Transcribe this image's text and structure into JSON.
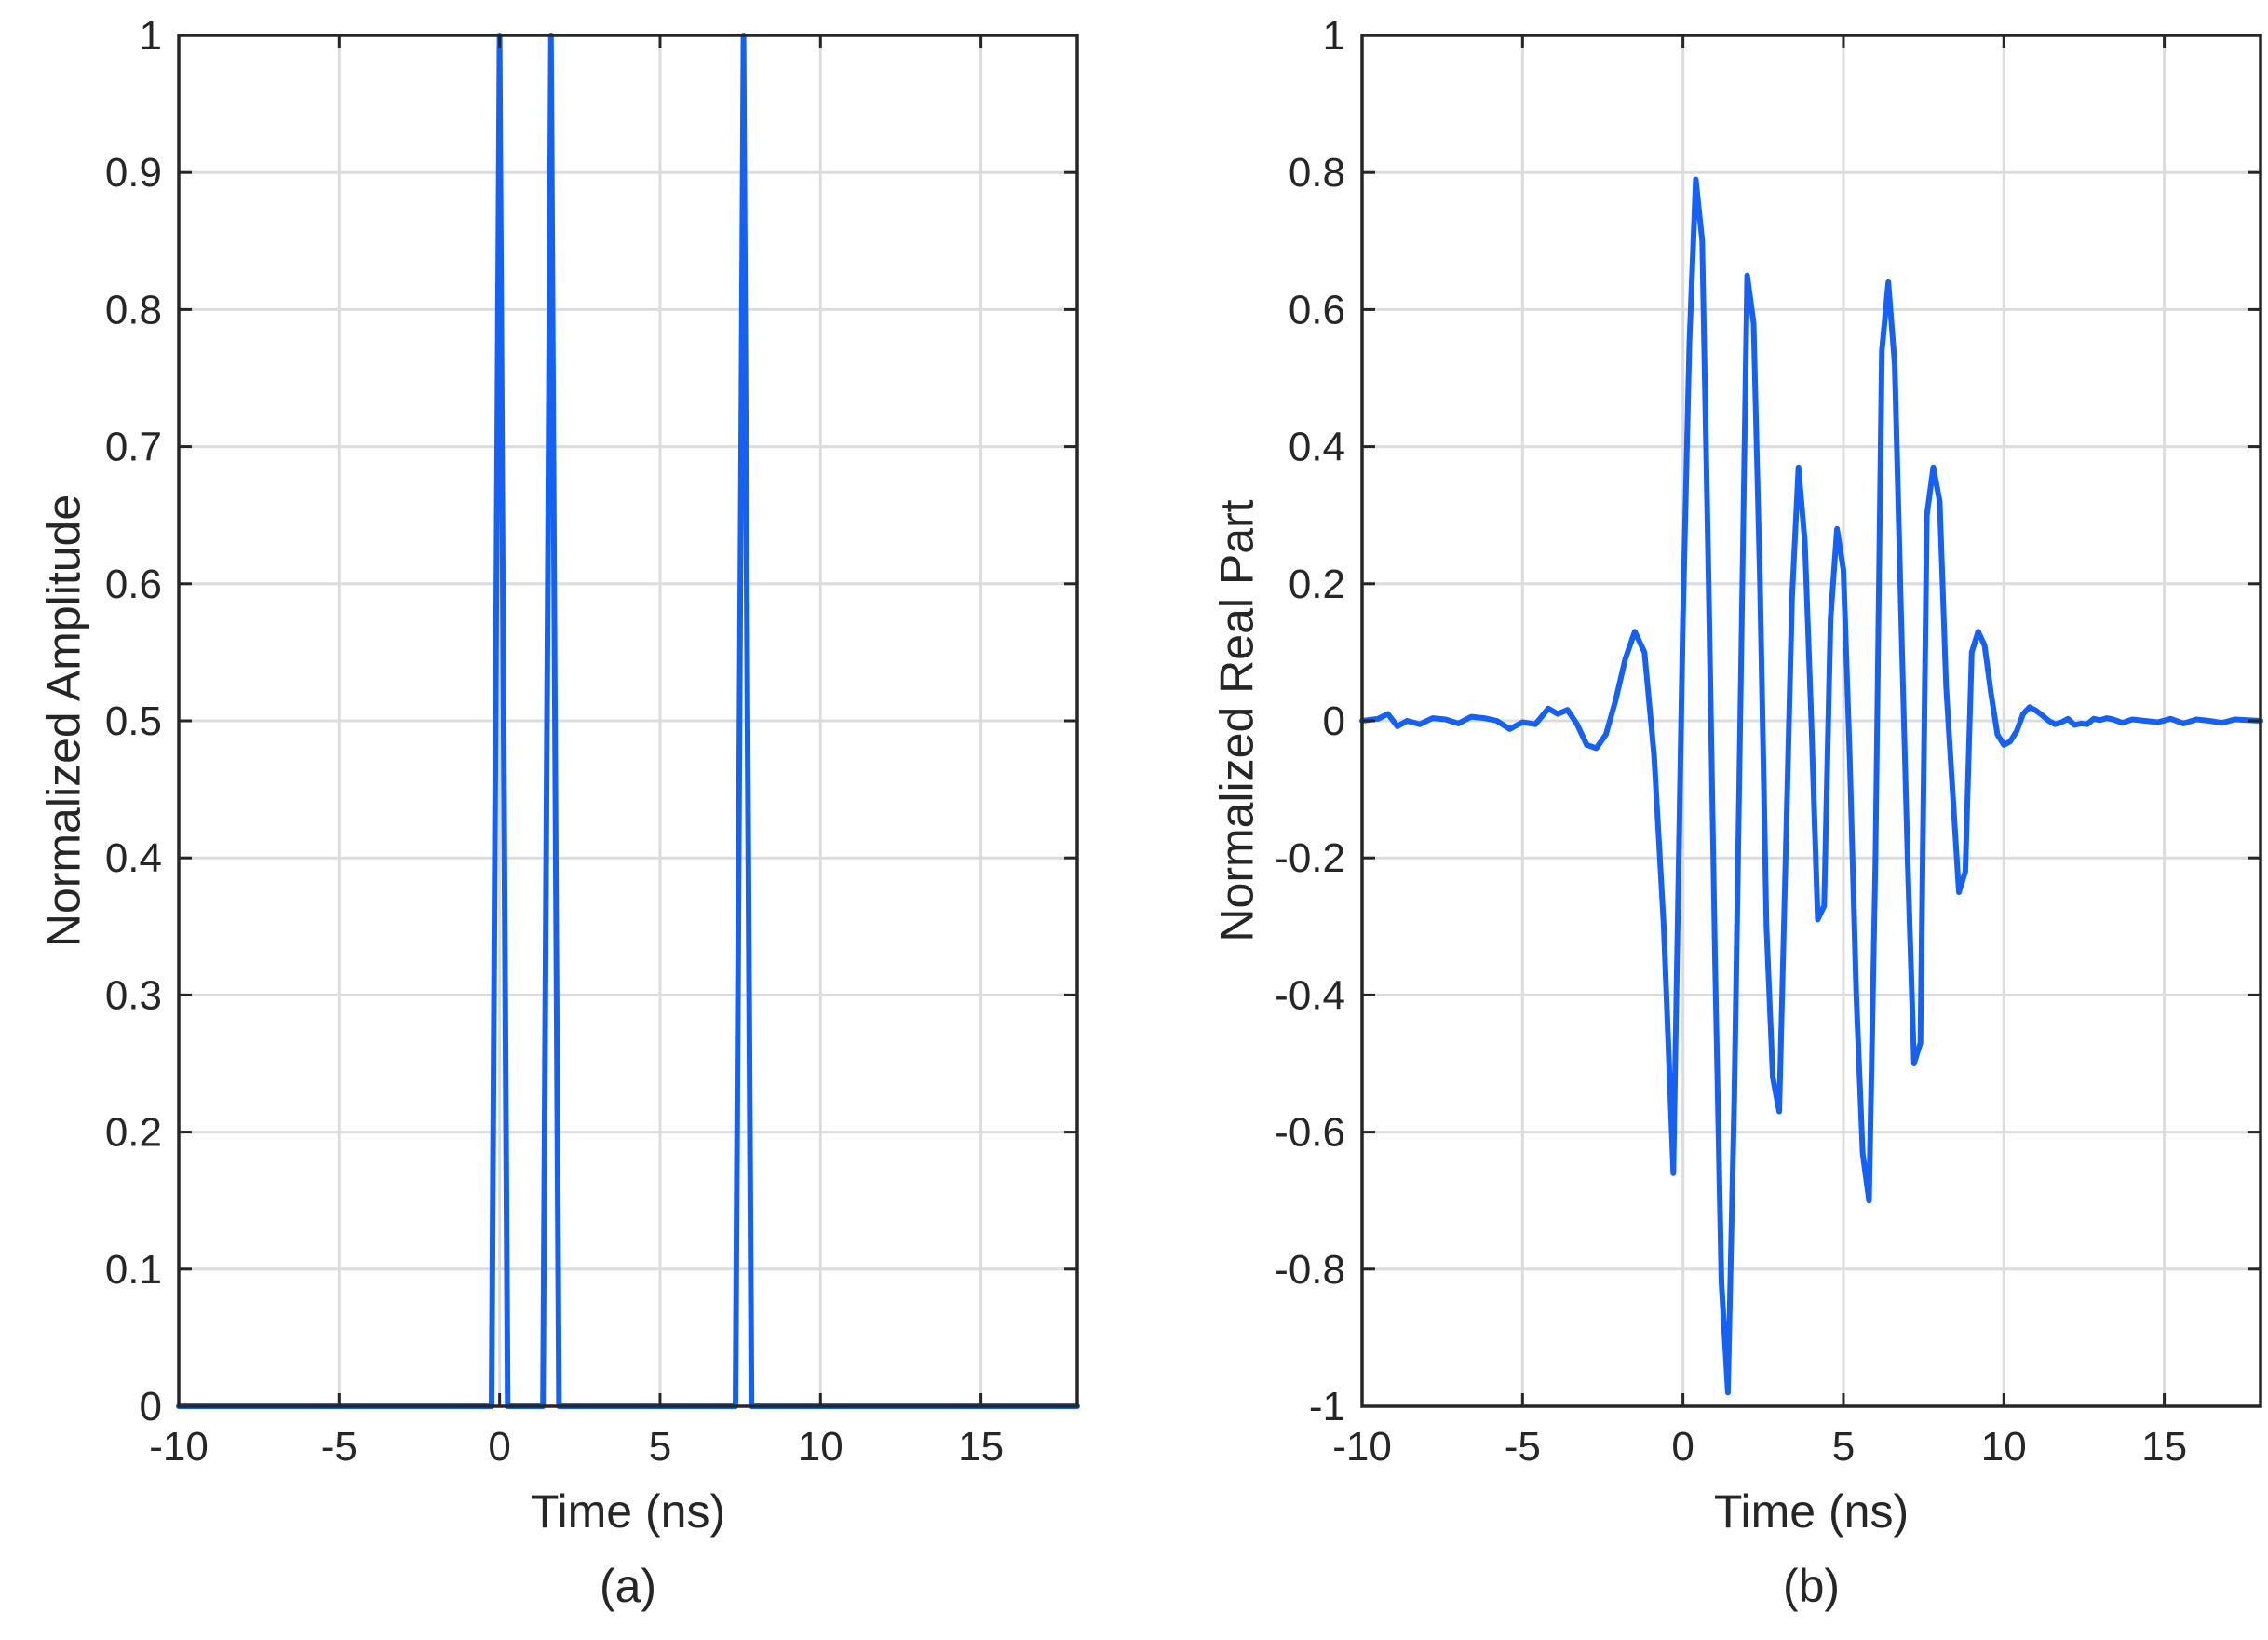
{
  "colors": {
    "series": "#1560f5",
    "axis": "#262626",
    "grid": "#dcdcdc"
  },
  "chart_data": [
    {
      "type": "line",
      "caption": "(a)",
      "xlabel": "Time (ns)",
      "ylabel": "Normalized Amplitude",
      "xlim": [
        -10,
        18
      ],
      "ylim": [
        0,
        1
      ],
      "grid": true,
      "xticks": [
        -10,
        -5,
        0,
        5,
        10,
        15
      ],
      "xtick_labels": [
        "-10",
        "-5",
        "0",
        "5",
        "10",
        "15"
      ],
      "yticks": [
        0,
        0.1,
        0.2,
        0.3,
        0.4,
        0.5,
        0.6,
        0.7,
        0.8,
        0.9,
        1
      ],
      "ytick_labels": [
        "0",
        "0.1",
        "0.2",
        "0.3",
        "0.4",
        "0.5",
        "0.6",
        "0.7",
        "0.8",
        "0.9",
        "1"
      ],
      "series": [
        {
          "x": [
            -10,
            -0.25,
            0,
            0.25,
            1.35,
            1.6,
            1.85,
            7.35,
            7.6,
            7.85,
            18
          ],
          "y": [
            0,
            0,
            1,
            0,
            0,
            1,
            0,
            0,
            1,
            0,
            0
          ]
        }
      ]
    },
    {
      "type": "line",
      "caption": "(b)",
      "xlabel": "Time (ns)",
      "ylabel": "Normalized Real Part",
      "xlim": [
        -10,
        18
      ],
      "ylim": [
        -1,
        1
      ],
      "grid": true,
      "xticks": [
        -10,
        -5,
        0,
        5,
        10,
        15
      ],
      "xtick_labels": [
        "-10",
        "-5",
        "0",
        "5",
        "10",
        "15"
      ],
      "yticks": [
        -1,
        -0.8,
        -0.6,
        -0.4,
        -0.2,
        0,
        0.2,
        0.4,
        0.6,
        0.8,
        1
      ],
      "ytick_labels": [
        "-1",
        "-0.8",
        "-0.6",
        "-0.4",
        "-0.2",
        "0",
        "0.2",
        "0.4",
        "0.6",
        "0.8",
        "1"
      ],
      "series": [
        {
          "x": [
            -10,
            -9.5,
            -9.2,
            -8.9,
            -8.6,
            -8.2,
            -7.8,
            -7.4,
            -7.0,
            -6.6,
            -6.2,
            -5.8,
            -5.4,
            -5.0,
            -4.6,
            -4.2,
            -3.9,
            -3.6,
            -3.3,
            -3.0,
            -2.7,
            -2.4,
            -2.1,
            -1.8,
            -1.5,
            -1.2,
            -0.9,
            -0.6,
            -0.3,
            0.0,
            0.2,
            0.4,
            0.6,
            0.8,
            1.0,
            1.2,
            1.4,
            1.6,
            1.8,
            2.0,
            2.2,
            2.4,
            2.6,
            2.8,
            3.0,
            3.2,
            3.4,
            3.6,
            3.8,
            4.0,
            4.2,
            4.4,
            4.6,
            4.8,
            5.0,
            5.2,
            5.4,
            5.6,
            5.8,
            6.0,
            6.2,
            6.4,
            6.6,
            6.8,
            7.0,
            7.2,
            7.4,
            7.6,
            7.8,
            8.0,
            8.2,
            8.4,
            8.6,
            8.8,
            9.0,
            9.2,
            9.4,
            9.6,
            9.8,
            10.0,
            10.2,
            10.4,
            10.6,
            10.8,
            11.0,
            11.2,
            11.4,
            11.6,
            11.8,
            12.0,
            12.2,
            12.4,
            12.6,
            12.8,
            13.0,
            13.2,
            13.4,
            13.7,
            14.0,
            14.4,
            14.8,
            15.2,
            15.6,
            16.0,
            16.4,
            16.8,
            17.2,
            17.6,
            18.0
          ],
          "y": [
            0.0,
            0.003,
            0.01,
            -0.008,
            0.0,
            -0.005,
            0.004,
            0.002,
            -0.004,
            0.006,
            0.004,
            0.0,
            -0.012,
            -0.002,
            -0.005,
            0.018,
            0.01,
            0.016,
            -0.005,
            -0.035,
            -0.04,
            -0.02,
            0.03,
            0.09,
            0.13,
            0.1,
            -0.05,
            -0.3,
            -0.66,
            0.15,
            0.55,
            0.79,
            0.7,
            0.2,
            -0.35,
            -0.82,
            -0.98,
            -0.55,
            0.05,
            0.65,
            0.58,
            0.2,
            -0.3,
            -0.52,
            -0.57,
            -0.2,
            0.18,
            0.37,
            0.26,
            0.0,
            -0.29,
            -0.27,
            0.15,
            0.28,
            0.22,
            -0.06,
            -0.4,
            -0.63,
            -0.7,
            -0.2,
            0.54,
            0.64,
            0.52,
            0.15,
            -0.2,
            -0.5,
            -0.47,
            0.3,
            0.37,
            0.32,
            0.05,
            -0.1,
            -0.25,
            -0.22,
            0.1,
            0.13,
            0.11,
            0.04,
            -0.02,
            -0.035,
            -0.03,
            -0.015,
            0.01,
            0.02,
            0.015,
            0.008,
            0.0,
            -0.005,
            -0.002,
            0.003,
            -0.006,
            -0.004,
            -0.005,
            0.003,
            0.001,
            0.004,
            0.002,
            -0.003,
            0.002,
            0.0,
            -0.002,
            0.003,
            -0.004,
            0.002,
            0.0,
            -0.003,
            0.002,
            0.001,
            0.0
          ]
        }
      ]
    }
  ]
}
